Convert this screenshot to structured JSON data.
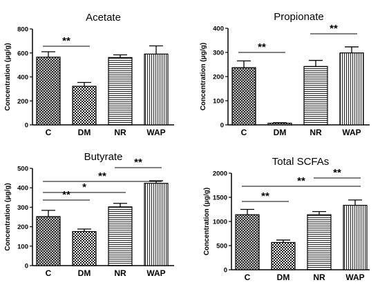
{
  "chart_data": [
    {
      "type": "bar",
      "title": "Acetate",
      "ylabel": "Concentration (μg/g)",
      "categories": [
        "C",
        "DM",
        "NR",
        "WAP"
      ],
      "values": [
        565,
        322,
        562,
        591
      ],
      "errors": [
        45,
        32,
        22,
        68
      ],
      "ylim": [
        0,
        800
      ],
      "yticks": [
        0,
        200,
        400,
        600,
        800
      ],
      "significance": [
        {
          "from": "C",
          "to": "DM",
          "label": "**"
        }
      ]
    },
    {
      "type": "bar",
      "title": "Propionate",
      "ylabel": "Concentration (μg/g)",
      "categories": [
        "C",
        "DM",
        "NR",
        "WAP"
      ],
      "values": [
        237,
        7,
        242,
        298
      ],
      "errors": [
        28,
        2,
        25,
        25
      ],
      "ylim": [
        0,
        400
      ],
      "yticks": [
        0,
        100,
        200,
        300,
        400
      ],
      "significance": [
        {
          "from": "C",
          "to": "DM",
          "label": "**"
        },
        {
          "from": "NR",
          "to": "WAP",
          "label": "**"
        }
      ]
    },
    {
      "type": "bar",
      "title": "Butyrate",
      "ylabel": "Concentration (μg/g)",
      "categories": [
        "C",
        "DM",
        "NR",
        "WAP"
      ],
      "values": [
        252,
        175,
        302,
        423
      ],
      "errors": [
        32,
        13,
        18,
        13
      ],
      "ylim": [
        0,
        500
      ],
      "yticks": [
        0,
        100,
        200,
        300,
        400,
        500
      ],
      "significance": [
        {
          "from": "C",
          "to": "DM",
          "label": "**"
        },
        {
          "from": "C",
          "to": "NR",
          "label": "*"
        },
        {
          "from": "C",
          "to": "WAP",
          "label": "**"
        },
        {
          "from": "NR",
          "to": "WAP",
          "label": "**"
        }
      ]
    },
    {
      "type": "bar",
      "title": "Total SCFAs",
      "ylabel": "Concentration (μg/g)",
      "categories": [
        "C",
        "DM",
        "NR",
        "WAP"
      ],
      "values": [
        1140,
        565,
        1140,
        1335
      ],
      "errors": [
        110,
        50,
        65,
        110
      ],
      "ylim": [
        0,
        2000
      ],
      "yticks": [
        0,
        500,
        1000,
        1500,
        2000
      ],
      "significance": [
        {
          "from": "C",
          "to": "DM",
          "label": "**"
        },
        {
          "from": "C",
          "to": "WAP",
          "label": "**"
        },
        {
          "from": "NR",
          "to": "WAP",
          "label": "**"
        }
      ]
    }
  ]
}
